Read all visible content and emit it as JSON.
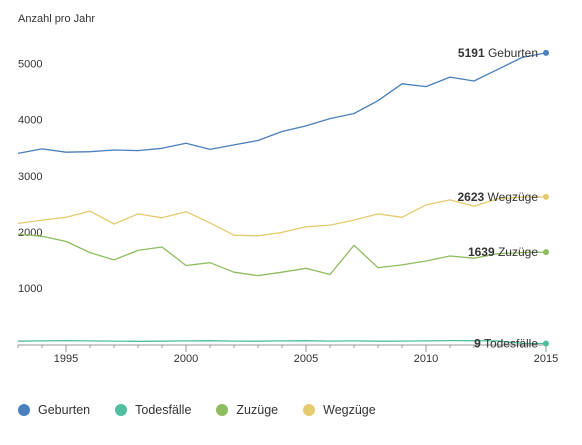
{
  "chart_data": {
    "type": "line",
    "ylabel": "Anzahl pro Jahr",
    "xlim": [
      1993,
      2015
    ],
    "ylim": [
      0,
      5600
    ],
    "x": [
      1993,
      1994,
      1995,
      1996,
      1997,
      1998,
      1999,
      2000,
      2001,
      2002,
      2003,
      2004,
      2005,
      2006,
      2007,
      2008,
      2009,
      2010,
      2011,
      2012,
      2013,
      2014,
      2015
    ],
    "x_ticks": [
      1995,
      2000,
      2005,
      2010,
      2015
    ],
    "x_tick_labels": [
      "1995",
      "2000",
      "2005",
      "2010",
      "2015"
    ],
    "y_ticks": [
      1000,
      2000,
      3000,
      4000,
      5000
    ],
    "y_tick_labels": [
      "1000",
      "2000",
      "3000",
      "4000",
      "5000"
    ],
    "series": [
      {
        "name": "Geburten",
        "color": "#4a7fbd",
        "values": [
          3400,
          3480,
          3420,
          3430,
          3460,
          3450,
          3490,
          3580,
          3470,
          3550,
          3630,
          3790,
          3890,
          4020,
          4110,
          4340,
          4640,
          4590,
          4760,
          4690,
          4900,
          5110,
          5191
        ],
        "end_label": "5191"
      },
      {
        "name": "Wegzüge",
        "color": "#e5cb6f",
        "values": [
          2150,
          2210,
          2260,
          2370,
          2140,
          2320,
          2250,
          2360,
          2160,
          1940,
          1930,
          1990,
          2090,
          2120,
          2210,
          2320,
          2260,
          2480,
          2570,
          2460,
          2590,
          2620,
          2623
        ],
        "end_label": "2623"
      },
      {
        "name": "Zuzüge",
        "color": "#8fbc5e",
        "values": [
          1960,
          1920,
          1830,
          1630,
          1500,
          1670,
          1730,
          1400,
          1450,
          1280,
          1220,
          1280,
          1350,
          1240,
          1760,
          1360,
          1410,
          1480,
          1570,
          1530,
          1610,
          1630,
          1639
        ],
        "end_label": "1639"
      },
      {
        "name": "Todesfälle",
        "color": "#4fbf9f",
        "values": [
          50,
          55,
          60,
          55,
          52,
          48,
          50,
          55,
          58,
          52,
          50,
          55,
          58,
          52,
          55,
          50,
          52,
          55,
          60,
          58,
          55,
          10,
          9
        ],
        "end_label": "9"
      }
    ]
  },
  "legend": {
    "items": [
      {
        "label": "Geburten",
        "color": "#4a7fbd"
      },
      {
        "label": "Todesfälle",
        "color": "#4fbf9f"
      },
      {
        "label": "Zuzüge",
        "color": "#8fbc5e"
      },
      {
        "label": "Wegzüge",
        "color": "#e5cb6f"
      }
    ]
  }
}
